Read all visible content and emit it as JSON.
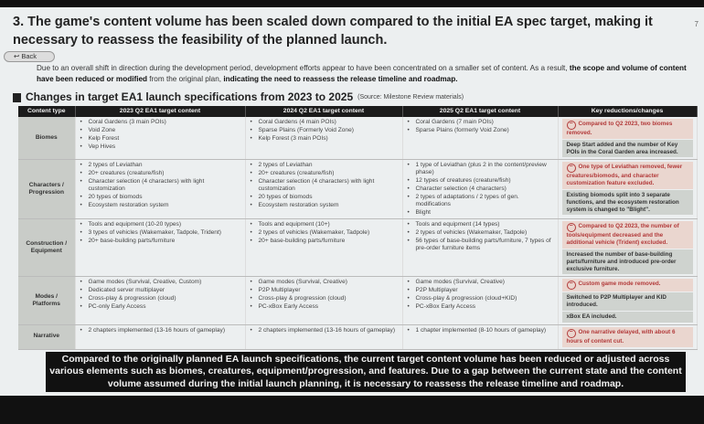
{
  "page_number": "7",
  "title": "3. The game's content volume has been scaled down compared to the initial EA spec target, making it necessary to reassess the feasibility of the planned launch.",
  "back_label": "↩ Back",
  "intro": {
    "p1": "Due to an overall shift in direction during the development period, development efforts appear to have been concentrated on a smaller set of content. As a result, ",
    "b1": "the scope and volume of content have been reduced or modified",
    "p2": " from the original plan, ",
    "b2": "indicating the need to reassess the release timeline and roadmap."
  },
  "section": {
    "title": "Changes in target EA1 launch specifications from 2023 to 2025",
    "source": "(Source: Milestone Review materials)"
  },
  "table": {
    "headers": [
      "Content type",
      "2023 Q2 EA1 target content",
      "2024 Q2 EA1 target content",
      "2025 Q2 EA1 target content",
      "Key reductions/changes"
    ],
    "rows": [
      {
        "type": "Biomes",
        "c2023": [
          "Coral Gardens (3 main POIs)",
          "Void Zone",
          "Kelp Forest",
          "Vep Hives"
        ],
        "c2024": [
          "Coral Gardens (4 main POIs)",
          "Sparse Plains (Formerly Void Zone)",
          "Kelp Forest (3 main POIs)"
        ],
        "c2025": [
          "Coral Gardens (7 main POIs)",
          "Sparse Plains (formerly Void Zone)"
        ],
        "neg": "Compared to Q2 2023, two biomes removed.",
        "chg": "Deep Start added and the number of Key POIs in the Coral Garden area increased."
      },
      {
        "type": "Characters / Progression",
        "c2023": [
          "2 types of Leviathan",
          "20+ creatures (creature/fish)",
          "Character selection (4 characters) with light customization",
          "20 types of biomods",
          "Ecosystem restoration system"
        ],
        "c2024": [
          "2 types of Leviathan",
          "20+ creatures (creature/fish)",
          "Character selection (4 characters) with light customization",
          "20 types of biomods",
          "Ecosystem restoration system"
        ],
        "c2025": [
          "1 type of Leviathan (plus 2 in the content/preview phase)",
          "12 types of creatures (creature/fish)",
          "Character selection (4 characters)",
          "2 types of adaptations / 2 types of gen. modifications",
          "Blight"
        ],
        "neg": "One type of Leviathan removed, fewer creatures/biomods, and character customization feature excluded.",
        "chg": "Existing biomods split into 3 separate functions, and the ecosystem restoration system is changed to \"Blight\"."
      },
      {
        "type": "Construction / Equipment",
        "c2023": [
          "Tools and equipment (10-20 types)",
          "3 types of vehicles (Wakemaker, Tadpole, Trident)",
          "20+ base-building parts/furniture"
        ],
        "c2024": [
          "Tools and equipment (10+)",
          "2 types of vehicles (Wakemaker, Tadpole)",
          "20+ base-building parts/furniture"
        ],
        "c2025": [
          "Tools and equipment (14 types)",
          "2 types of vehicles (Wakemaker, Tadpole)",
          "56 types of base-building parts/furniture, 7 types of pre-order furniture items"
        ],
        "neg": "Compared to Q2 2023, the number of tools/equipment decreased and the additional vehicle (Trident) excluded.",
        "chg": "Increased the number of base-building parts/furniture and introduced pre-order exclusive furniture."
      },
      {
        "type": "Modes / Platforms",
        "c2023": [
          "Game modes (Survival, Creative, Custom)",
          "Dedicated server multiplayer",
          "Cross-play & progression (cloud)",
          "PC-only Early Access"
        ],
        "c2024": [
          "Game modes (Survival, Creative)",
          "P2P Multiplayer",
          "Cross-play & progression (cloud)",
          "PC-xBox Early Access"
        ],
        "c2025": [
          "Game modes (Survival, Creative)",
          "P2P Multiplayer",
          "Cross-play & progression (cloud+KID)",
          "PC-xBox Early Access"
        ],
        "neg": "Custom game mode removed.",
        "chg": "Switched to P2P Multiplayer and KID introduced.",
        "chg2": "xBox EA included."
      },
      {
        "type": "Narrative",
        "c2023": [
          "2 chapters implemented (13-16 hours of gameplay)"
        ],
        "c2024": [
          "2 chapters implemented (13-16 hours of gameplay)"
        ],
        "c2025": [
          "1 chapter implemented (8-10 hours of gameplay)"
        ],
        "neg": "One narrative delayed, with about 6 hours of content cut."
      }
    ]
  },
  "summary": "Compared to the originally planned EA launch specifications, the current target content volume has been reduced or adjusted across various elements such as biomes, creatures, equipment/progression, and features. Due to a gap between the current state and the content volume assumed during the initial launch planning, it is necessary to reassess the release timeline and roadmap."
}
